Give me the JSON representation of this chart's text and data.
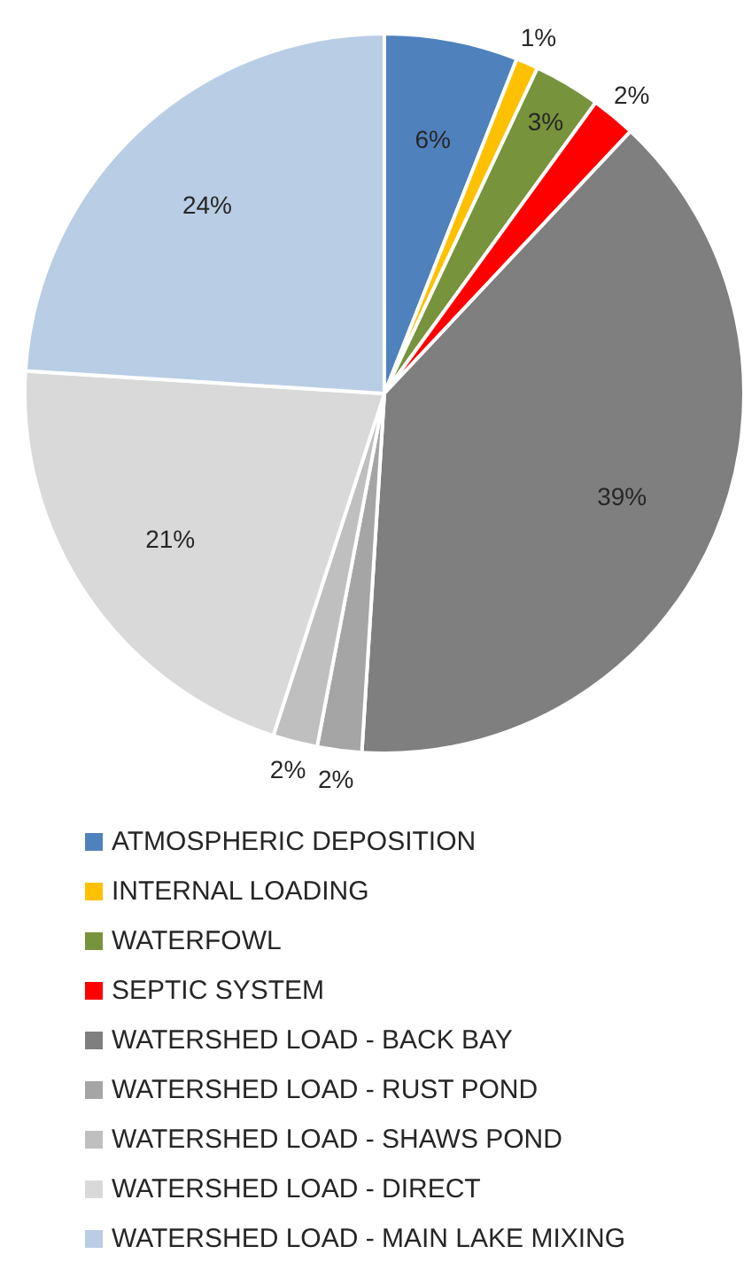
{
  "chart_data": {
    "type": "pie",
    "categories": [
      "ATMOSPHERIC DEPOSITION",
      "INTERNAL LOADING",
      "WATERFOWL",
      "SEPTIC SYSTEM",
      "WATERSHED LOAD - BACK BAY",
      "WATERSHED LOAD - RUST POND",
      "WATERSHED LOAD - SHAWS POND",
      "WATERSHED LOAD - DIRECT",
      "WATERSHED LOAD - MAIN LAKE MIXING"
    ],
    "values": [
      6,
      1,
      3,
      2,
      39,
      2,
      2,
      21,
      24
    ],
    "value_labels": [
      "6%",
      "1%",
      "3%",
      "2%",
      "39%",
      "2%",
      "2%",
      "21%",
      "24%"
    ],
    "colors": [
      "#4f81bd",
      "#ffc000",
      "#77933c",
      "#ff0000",
      "#7f7f7f",
      "#a5a5a5",
      "#bfbfbf",
      "#d9d9d9",
      "#b9cde5"
    ],
    "legend": "bottom"
  }
}
